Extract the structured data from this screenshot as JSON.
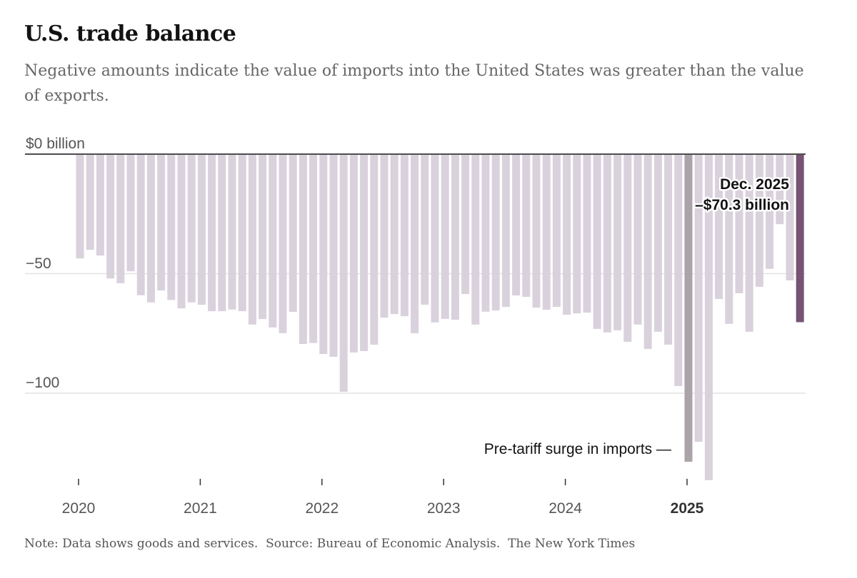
{
  "header": {
    "title": "U.S. trade balance",
    "subtitle": "Negative amounts indicate the value of imports into the United States was greater than the value of exports."
  },
  "footer": {
    "note": "Note: Data shows goods and services.",
    "source": "Source: Bureau of Economic Analysis.",
    "credit": "The New York Times"
  },
  "chart_data": {
    "type": "bar",
    "title": "U.S. trade balance",
    "ylabel": "",
    "y_unit_label": "$0 billion",
    "y_ticks": [
      {
        "value": 0,
        "label": "$0 billion"
      },
      {
        "value": -50,
        "label": "−50"
      },
      {
        "value": -100,
        "label": "−100"
      }
    ],
    "ylim": [
      -140,
      0
    ],
    "grid": true,
    "x_ticks": [
      {
        "label": "2020",
        "bold": false
      },
      {
        "label": "2021",
        "bold": false
      },
      {
        "label": "2022",
        "bold": false
      },
      {
        "label": "2023",
        "bold": false
      },
      {
        "label": "2024",
        "bold": false
      },
      {
        "label": "2025",
        "bold": true
      }
    ],
    "x_start": "2020-01",
    "x_frequency": "monthly",
    "values": [
      -43.6,
      -40.0,
      -42.4,
      -52.0,
      -54.0,
      -49.0,
      -59.0,
      -62.0,
      -57.0,
      -61.0,
      -64.5,
      -62.0,
      -63.0,
      -65.7,
      -65.7,
      -65.0,
      -65.7,
      -71.3,
      -69.0,
      -72.5,
      -74.9,
      -66.0,
      -79.4,
      -79.0,
      -83.6,
      -84.8,
      -99.4,
      -83.0,
      -82.4,
      -79.7,
      -68.4,
      -66.9,
      -67.8,
      -74.9,
      -63.0,
      -70.4,
      -68.9,
      -69.3,
      -58.5,
      -71.3,
      -65.9,
      -65.4,
      -63.9,
      -59.1,
      -59.7,
      -64.2,
      -65.1,
      -63.9,
      -67.2,
      -66.6,
      -66.3,
      -73.1,
      -74.6,
      -73.7,
      -78.5,
      -71.3,
      -81.5,
      -74.3,
      -79.7,
      -97.0,
      -128.7,
      -120.3,
      -136.4,
      -60.6,
      -71.0,
      -58.2,
      -74.3,
      -55.5,
      -48.0,
      -29.3,
      -52.8,
      -70.3
    ],
    "highlights": [
      {
        "month": "2025-01",
        "color": "#aba3aa",
        "annotation": "Pre-tariff surge in imports —"
      },
      {
        "month": "2025-12",
        "color": "#765474",
        "annotation_line1": "Dec. 2025",
        "annotation_line2": "–$70.3 billion"
      }
    ],
    "colors": {
      "bar": "#d9d1dc",
      "zero_line": "#121212",
      "grid": "#e2e2e2"
    }
  }
}
